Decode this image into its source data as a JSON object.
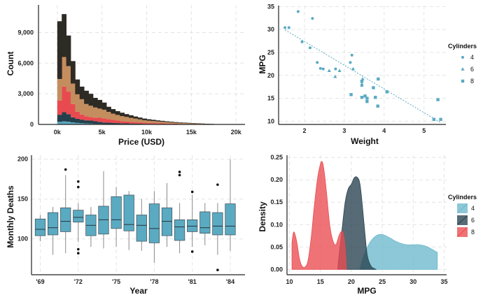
{
  "colors": {
    "accent": "#5aaac2",
    "dark": "#2e2a24",
    "tan": "#c48d5e",
    "red": "#e84a4f",
    "navy": "#24404d",
    "d4": "#6cb8cc",
    "d6": "#26414e",
    "d8": "#ea4b50"
  },
  "chart_data": [
    {
      "type": "bar",
      "subtype": "stacked-histogram",
      "title": "",
      "xlabel": "Price (USD)",
      "ylabel": "Count",
      "xlim": [
        -2100,
        21000
      ],
      "ylim": [
        0,
        11700
      ],
      "xticks": [
        0,
        5000,
        10000,
        15000,
        20000
      ],
      "xtick_labels": [
        "0k",
        "5k",
        "10k",
        "15k",
        "20k"
      ],
      "yticks": [
        0,
        3000,
        6000,
        9000
      ],
      "ytick_labels": [
        "0",
        "3,000",
        "6,000",
        "9,000"
      ],
      "bin_start": 0,
      "bin_width": 500,
      "stack_order": [
        "blue",
        "navy",
        "red",
        "tan",
        "dark"
      ],
      "series": [
        {
          "name": "blue",
          "color": "#5aaac2",
          "values": [
            250,
            300,
            260,
            200,
            150,
            120,
            100,
            80,
            60,
            50,
            40,
            30,
            25,
            20,
            15,
            12,
            10,
            8,
            6,
            5,
            4,
            3,
            2,
            2,
            1,
            1,
            1,
            0,
            0,
            0,
            0,
            0,
            0,
            0,
            0,
            0,
            0,
            0
          ]
        },
        {
          "name": "navy",
          "color": "#24404d",
          "values": [
            700,
            900,
            750,
            500,
            400,
            350,
            300,
            300,
            250,
            200,
            150,
            150,
            130,
            110,
            100,
            90,
            80,
            70,
            60,
            50,
            45,
            40,
            35,
            30,
            25,
            20,
            18,
            15,
            12,
            10,
            8,
            6,
            5,
            4,
            3,
            2,
            1,
            0
          ]
        },
        {
          "name": "red",
          "color": "#e84a4f",
          "values": [
            1400,
            2500,
            2200,
            1300,
            700,
            500,
            400,
            350,
            350,
            400,
            400,
            350,
            300,
            250,
            200,
            180,
            160,
            150,
            130,
            110,
            100,
            90,
            80,
            70,
            60,
            55,
            50,
            40,
            35,
            30,
            25,
            20,
            15,
            10,
            8,
            5,
            3,
            0
          ]
        },
        {
          "name": "tan",
          "color": "#c48d5e",
          "values": [
            2100,
            2900,
            2500,
            2000,
            1700,
            1500,
            1200,
            1100,
            1000,
            900,
            850,
            700,
            600,
            550,
            500,
            450,
            400,
            350,
            300,
            250,
            220,
            200,
            180,
            160,
            140,
            120,
            100,
            90,
            80,
            70,
            60,
            50,
            40,
            30,
            20,
            12,
            6,
            0
          ]
        },
        {
          "name": "dark",
          "color": "#2e2a24",
          "values": [
            5650,
            4200,
            2990,
            2200,
            1450,
            1230,
            1300,
            1170,
            940,
            850,
            700,
            500,
            445,
            370,
            335,
            280,
            250,
            200,
            180,
            160,
            140,
            120,
            100,
            90,
            80,
            70,
            60,
            55,
            50,
            45,
            40,
            35,
            30,
            25,
            20,
            15,
            10,
            0
          ]
        }
      ]
    },
    {
      "type": "scatter",
      "title": "",
      "xlabel": "Weight",
      "ylabel": "MPG",
      "xlim": [
        1.35,
        5.55
      ],
      "ylim": [
        9.3,
        35.2
      ],
      "xticks": [
        2,
        3,
        4,
        5
      ],
      "xtick_labels": [
        "2",
        "3",
        "4",
        "5"
      ],
      "yticks": [
        10,
        15,
        20,
        25,
        30,
        35
      ],
      "ytick_labels": [
        "10",
        "15",
        "20",
        "25",
        "30",
        "35"
      ],
      "trendline": {
        "x": [
          1.51,
          5.42
        ],
        "y": [
          29.9,
          9.7
        ]
      },
      "legend": {
        "title": "Cylinders",
        "position": "right",
        "entries": [
          "4",
          "6",
          "8"
        ]
      },
      "series": [
        {
          "name": "4",
          "marker": "circle",
          "x": [
            1.51,
            1.61,
            1.84,
            1.94,
            2.14,
            2.2,
            2.32,
            2.47,
            2.78,
            3.19,
            3.15,
            2.4
          ],
          "y": [
            30.4,
            30.4,
            33.9,
            27.3,
            26.0,
            32.4,
            22.8,
            21.4,
            21.4,
            24.4,
            22.8,
            21.5
          ]
        },
        {
          "name": "6",
          "marker": "triangle",
          "x": [
            2.62,
            2.88,
            3.22,
            3.44,
            3.46,
            3.44,
            2.77
          ],
          "y": [
            21.0,
            21.0,
            21.4,
            18.1,
            19.2,
            17.8,
            19.7
          ]
        },
        {
          "name": "8",
          "marker": "square",
          "x": [
            3.44,
            3.57,
            4.07,
            3.73,
            3.78,
            5.25,
            5.42,
            5.35,
            3.52,
            3.44,
            3.84,
            3.85,
            3.17,
            3.57
          ],
          "y": [
            18.7,
            14.3,
            16.4,
            17.3,
            15.2,
            10.4,
            10.4,
            14.7,
            15.5,
            15.2,
            13.3,
            19.2,
            15.8,
            15.0
          ]
        }
      ]
    },
    {
      "type": "box",
      "title": "",
      "xlabel": "Year",
      "ylabel": "Monthly Deaths",
      "ylim": [
        55,
        205
      ],
      "yticks": [
        100,
        150,
        200
      ],
      "ytick_labels": [
        "100",
        "150",
        "200"
      ],
      "categories": [
        "'69",
        "'70",
        "'71",
        "'72",
        "'73",
        "'74",
        "'75",
        "'76",
        "'77",
        "'78",
        "'79",
        "'80",
        "'81",
        "'82",
        "'83",
        "'84"
      ],
      "xtick_labels": [
        "'69",
        "'72",
        "'75",
        "'78",
        "'81",
        "'84"
      ],
      "boxes": [
        {
          "q1": 104,
          "median": 112,
          "q3": 125,
          "min": 97,
          "max": 130,
          "outliers": []
        },
        {
          "q1": 105,
          "median": 114,
          "q3": 133,
          "min": 80,
          "max": 140,
          "outliers": []
        },
        {
          "q1": 109,
          "median": 122,
          "q3": 139,
          "min": 82,
          "max": 180,
          "outliers": [
            187
          ]
        },
        {
          "q1": 121,
          "median": 127,
          "q3": 136,
          "min": 96,
          "max": 145,
          "outliers": [
            172,
            165,
            87,
            82
          ]
        },
        {
          "q1": 104,
          "median": 117,
          "q3": 130,
          "min": 90,
          "max": 140,
          "outliers": []
        },
        {
          "q1": 106,
          "median": 124,
          "q3": 141,
          "min": 88,
          "max": 185,
          "outliers": []
        },
        {
          "q1": 113,
          "median": 124,
          "q3": 153,
          "min": 90,
          "max": 165,
          "outliers": []
        },
        {
          "q1": 110,
          "median": 118,
          "q3": 155,
          "min": 86,
          "max": 160,
          "outliers": []
        },
        {
          "q1": 97,
          "median": 117,
          "q3": 130,
          "min": 85,
          "max": 150,
          "outliers": []
        },
        {
          "q1": 95,
          "median": 113,
          "q3": 144,
          "min": 70,
          "max": 160,
          "outliers": []
        },
        {
          "q1": 104,
          "median": 122,
          "q3": 139,
          "min": 90,
          "max": 170,
          "outliers": []
        },
        {
          "q1": 98,
          "median": 115,
          "q3": 124,
          "min": 82,
          "max": 145,
          "outliers": [
            184,
            180
          ]
        },
        {
          "q1": 109,
          "median": 116,
          "q3": 124,
          "min": 90,
          "max": 155,
          "outliers": [
            159,
            84
          ]
        },
        {
          "q1": 107,
          "median": 114,
          "q3": 134,
          "min": 92,
          "max": 145,
          "outliers": []
        },
        {
          "q1": 105,
          "median": 116,
          "q3": 133,
          "min": 80,
          "max": 145,
          "outliers": [
            168,
            61
          ]
        },
        {
          "q1": 105,
          "median": 116,
          "q3": 144,
          "min": 85,
          "max": 200,
          "outliers": []
        }
      ]
    },
    {
      "type": "area",
      "subtype": "density",
      "title": "",
      "xlabel": "MPG",
      "ylabel": "Density",
      "xlim": [
        9.6,
        35.4
      ],
      "ylim": [
        -0.012,
        0.255
      ],
      "xticks": [
        10,
        15,
        20,
        25,
        30,
        35
      ],
      "xtick_labels": [
        "10",
        "15",
        "20",
        "25",
        "30",
        "35"
      ],
      "yticks": [
        0,
        0.05,
        0.1,
        0.15,
        0.2,
        0.25
      ],
      "ytick_labels": [
        "0.00",
        "0.05",
        "0.10",
        "0.15",
        "0.20",
        "0.25"
      ],
      "legend": {
        "title": "Cylinders",
        "position": "right",
        "entries": [
          "4",
          "6",
          "8"
        ]
      },
      "series": [
        {
          "name": "4",
          "color": "#6cb8cc",
          "x": [
            21.4,
            22,
            23,
            24,
            25,
            26,
            27,
            28,
            29,
            30,
            31,
            32,
            33,
            33.9
          ],
          "y": [
            0,
            0.03,
            0.06,
            0.075,
            0.078,
            0.072,
            0.064,
            0.058,
            0.055,
            0.055,
            0.055,
            0.052,
            0.045,
            0.038
          ]
        },
        {
          "name": "6",
          "color": "#26414e",
          "x": [
            17.8,
            18,
            18.5,
            19,
            19.5,
            20,
            20.5,
            21,
            21.4,
            21.8,
            22.2,
            22.6,
            23.2,
            24
          ],
          "y": [
            0,
            0.03,
            0.09,
            0.15,
            0.18,
            0.19,
            0.205,
            0.205,
            0.19,
            0.14,
            0.08,
            0.03,
            0.007,
            0
          ]
        },
        {
          "name": "8",
          "color": "#ea4b50",
          "x": [
            10.4,
            10.6,
            10.8,
            11.2,
            11.6,
            12,
            12.5,
            13,
            13.5,
            14,
            14.5,
            15,
            15.3,
            15.6,
            16,
            16.5,
            17,
            17.5,
            18,
            18.4,
            18.7,
            19,
            19.2
          ],
          "y": [
            0.06,
            0.08,
            0.082,
            0.06,
            0.025,
            0.008,
            0.005,
            0.02,
            0.07,
            0.14,
            0.2,
            0.235,
            0.24,
            0.22,
            0.17,
            0.1,
            0.065,
            0.055,
            0.075,
            0.085,
            0.08,
            0.05,
            0
          ]
        }
      ]
    }
  ]
}
